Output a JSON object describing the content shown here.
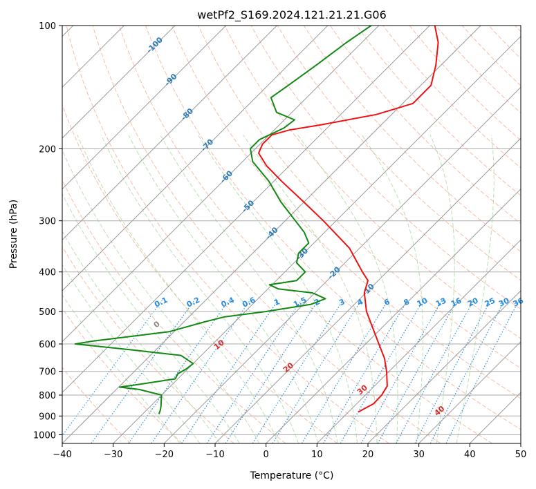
{
  "chart_data": {
    "type": "skew-t",
    "title": "wetPf2_S169.2024.121.21.21.G06",
    "xlabel": "Temperature (°C)",
    "ylabel": "Pressure (hPa)",
    "xlim": [
      -40,
      50
    ],
    "ylim_hpa": [
      1050,
      100
    ],
    "x_ticks": [
      "−40",
      "−30",
      "−20",
      "−10",
      "0",
      "10",
      "20",
      "30",
      "40",
      "50"
    ],
    "y_ticks": [
      "100",
      "200",
      "300",
      "400",
      "500",
      "600",
      "700",
      "800",
      "900",
      "1000"
    ],
    "isotherm_labels": [
      "-100",
      "-90",
      "-80",
      "-70",
      "-60",
      "-50",
      "-40",
      "-30",
      "-20",
      "-10"
    ],
    "mixing_ratio_labels": [
      "0.1",
      "0.2",
      "0.4",
      "0.6",
      "1",
      "1.5",
      "2",
      "3",
      "4",
      "6",
      "8",
      "10",
      "13",
      "16",
      "20",
      "25",
      "30",
      "36"
    ],
    "dry_adiabat_labels": [
      "0",
      "10",
      "20",
      "30",
      "40"
    ],
    "colors": {
      "temperature": "#ee1111",
      "dewpoint": "#118811",
      "isotherm": "#999999",
      "dry_adiabat": "#f4a58a",
      "moist_adiabat": "#a8d8a0",
      "mixing_ratio": "#2a8cdc",
      "isotherm_label": "#2b7bb9",
      "adiabat_label": "#d42a2a",
      "zero_label": "#888888"
    },
    "series": [
      {
        "name": "Temperature",
        "points": [
          {
            "p": 880,
            "T": 11.9
          },
          {
            "p": 860,
            "T": 12.6
          },
          {
            "p": 840,
            "T": 13.3
          },
          {
            "p": 800,
            "T": 13.2
          },
          {
            "p": 760,
            "T": 12.5
          },
          {
            "p": 700,
            "T": 9.5
          },
          {
            "p": 650,
            "T": 6.5
          },
          {
            "p": 600,
            "T": 2.6
          },
          {
            "p": 550,
            "T": -1.6
          },
          {
            "p": 500,
            "T": -6.2
          },
          {
            "p": 450,
            "T": -10.3
          },
          {
            "p": 420,
            "T": -12.0
          },
          {
            "p": 400,
            "T": -14.8
          },
          {
            "p": 350,
            "T": -22.0
          },
          {
            "p": 300,
            "T": -32.5
          },
          {
            "p": 270,
            "T": -40.0
          },
          {
            "p": 240,
            "T": -48.5
          },
          {
            "p": 220,
            "T": -54.5
          },
          {
            "p": 205,
            "T": -58.5
          },
          {
            "p": 195,
            "T": -59.5
          },
          {
            "p": 185,
            "T": -59.5
          },
          {
            "p": 180,
            "T": -57.0
          },
          {
            "p": 175,
            "T": -52.0
          },
          {
            "p": 165,
            "T": -43.0
          },
          {
            "p": 155,
            "T": -38.0
          },
          {
            "p": 140,
            "T": -38.0
          },
          {
            "p": 125,
            "T": -41.0
          },
          {
            "p": 110,
            "T": -45.0
          },
          {
            "p": 100,
            "T": -49.0
          }
        ]
      },
      {
        "name": "Dewpoint",
        "points": [
          {
            "p": 890,
            "T": -26.8
          },
          {
            "p": 870,
            "T": -27.3
          },
          {
            "p": 850,
            "T": -28.0
          },
          {
            "p": 820,
            "T": -29.2
          },
          {
            "p": 800,
            "T": -30.0
          },
          {
            "p": 775,
            "T": -35.5
          },
          {
            "p": 765,
            "T": -39.8
          },
          {
            "p": 755,
            "T": -37.0
          },
          {
            "p": 730,
            "T": -30.5
          },
          {
            "p": 710,
            "T": -31.0
          },
          {
            "p": 690,
            "T": -30.3
          },
          {
            "p": 670,
            "T": -30.0
          },
          {
            "p": 640,
            "T": -34.0
          },
          {
            "p": 620,
            "T": -45.0
          },
          {
            "p": 600,
            "T": -57.0
          },
          {
            "p": 590,
            "T": -54.0
          },
          {
            "p": 560,
            "T": -41.0
          },
          {
            "p": 530,
            "T": -36.0
          },
          {
            "p": 515,
            "T": -33.0
          },
          {
            "p": 500,
            "T": -26.0
          },
          {
            "p": 480,
            "T": -18.5
          },
          {
            "p": 465,
            "T": -16.8
          },
          {
            "p": 450,
            "T": -20.5
          },
          {
            "p": 440,
            "T": -28.0
          },
          {
            "p": 430,
            "T": -30.5
          },
          {
            "p": 420,
            "T": -26.0
          },
          {
            "p": 400,
            "T": -26.0
          },
          {
            "p": 380,
            "T": -29.5
          },
          {
            "p": 360,
            "T": -31.0
          },
          {
            "p": 340,
            "T": -31.0
          },
          {
            "p": 320,
            "T": -34.0
          },
          {
            "p": 300,
            "T": -38.0
          },
          {
            "p": 270,
            "T": -44.5
          },
          {
            "p": 240,
            "T": -51.0
          },
          {
            "p": 215,
            "T": -58.0
          },
          {
            "p": 200,
            "T": -61.0
          },
          {
            "p": 190,
            "T": -61.0
          },
          {
            "p": 178,
            "T": -58.5
          },
          {
            "p": 170,
            "T": -58.0
          },
          {
            "p": 163,
            "T": -63.0
          },
          {
            "p": 150,
            "T": -67.0
          },
          {
            "p": 140,
            "T": -66.0
          },
          {
            "p": 125,
            "T": -64.5
          },
          {
            "p": 110,
            "T": -63.0
          },
          {
            "p": 100,
            "T": -61.5
          }
        ]
      }
    ]
  }
}
